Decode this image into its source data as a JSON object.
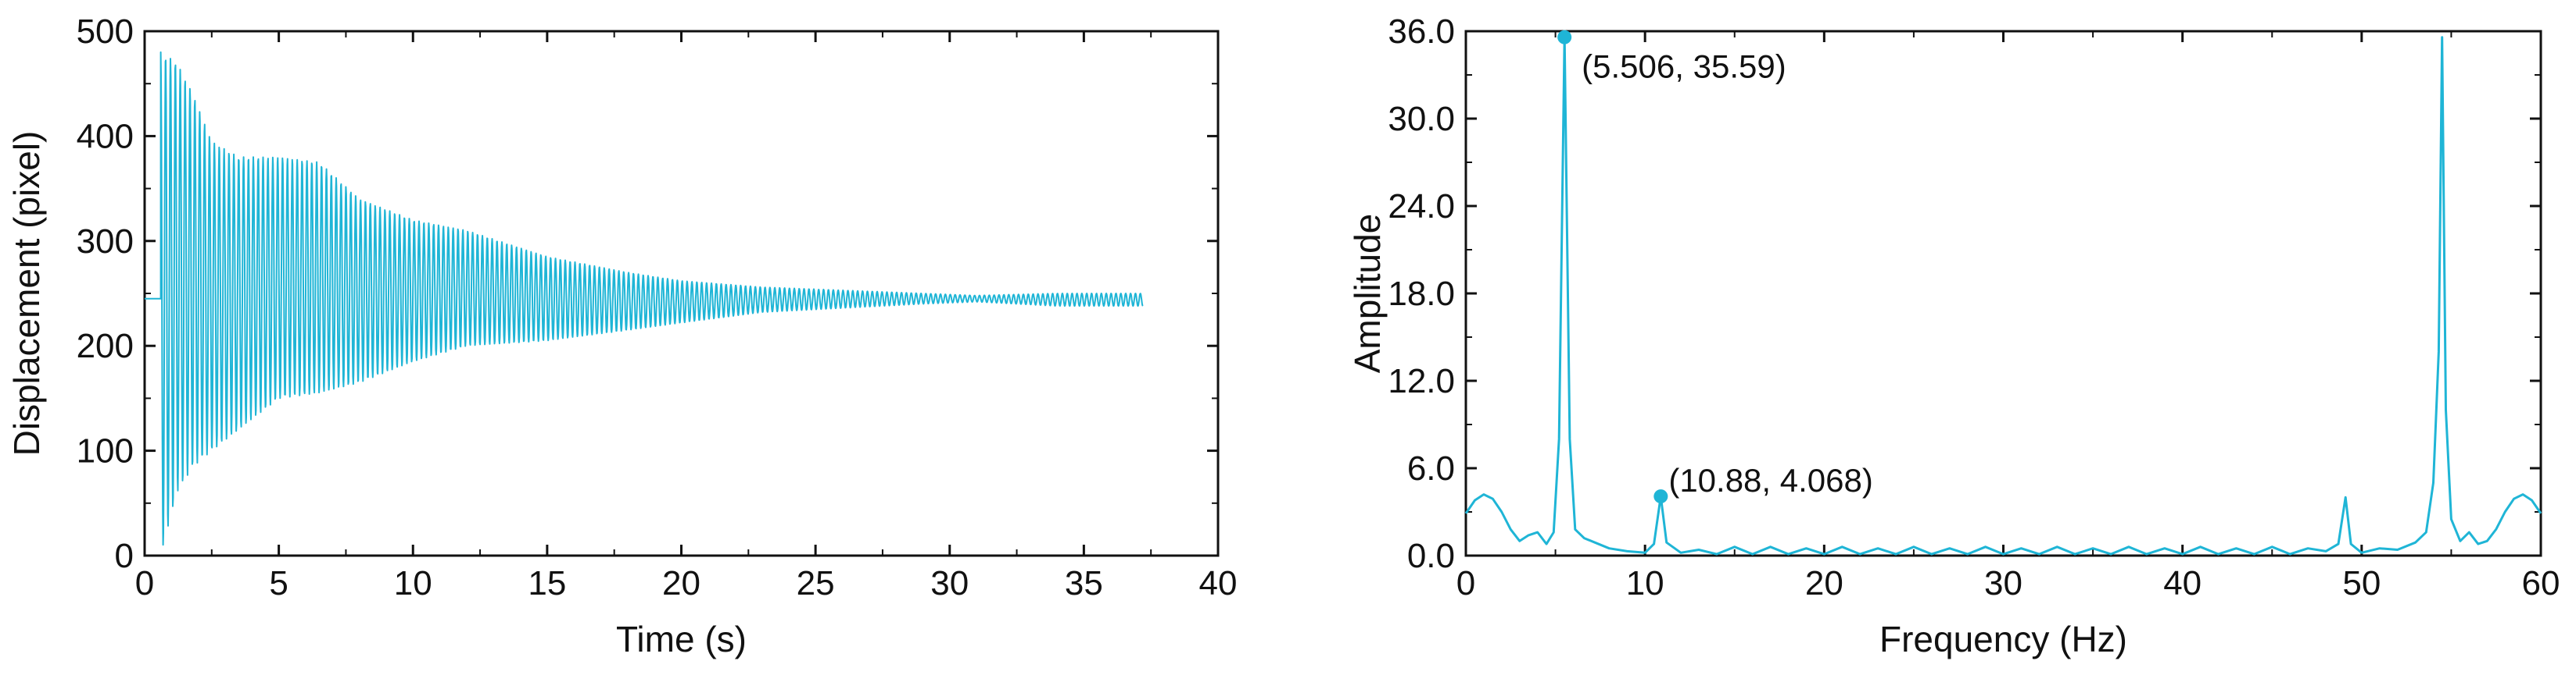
{
  "chart_data": [
    {
      "type": "line",
      "xlabel": "Time (s)",
      "ylabel": "Displacement (pixel)",
      "xlim": [
        0,
        40
      ],
      "ylim": [
        0,
        500
      ],
      "xticks": [
        0,
        5,
        10,
        15,
        20,
        25,
        30,
        35,
        40
      ],
      "xtick_labels": [
        "0",
        "5",
        "10",
        "15",
        "20",
        "25",
        "30",
        "35",
        "40"
      ],
      "yticks": [
        0,
        100,
        200,
        300,
        400,
        500
      ],
      "ytick_labels": [
        "0",
        "100",
        "200",
        "300",
        "400",
        "500"
      ],
      "grid": false,
      "color": "#1fb5d6",
      "signal": {
        "baseline": 245,
        "flat_before_release": [
          0,
          0.6
        ],
        "release_time": 0.6,
        "end_time": 37.2,
        "oscillation_frequency_hz": 5.506,
        "envelope": [
          {
            "t": 0.6,
            "high": 480,
            "low": 0
          },
          {
            "t": 1.2,
            "high": 470,
            "low": 60
          },
          {
            "t": 1.8,
            "high": 440,
            "low": 85
          },
          {
            "t": 2.5,
            "high": 395,
            "low": 100
          },
          {
            "t": 3.5,
            "high": 380,
            "low": 120
          },
          {
            "t": 5.0,
            "high": 380,
            "low": 150
          },
          {
            "t": 6.5,
            "high": 375,
            "low": 155
          },
          {
            "t": 8.0,
            "high": 340,
            "low": 165
          },
          {
            "t": 10.0,
            "high": 320,
            "low": 185
          },
          {
            "t": 12.0,
            "high": 310,
            "low": 200
          },
          {
            "t": 15.0,
            "high": 285,
            "low": 205
          },
          {
            "t": 18.0,
            "high": 270,
            "low": 215
          },
          {
            "t": 20.0,
            "high": 262,
            "low": 222
          },
          {
            "t": 23.0,
            "high": 256,
            "low": 232
          },
          {
            "t": 26.0,
            "high": 253,
            "low": 236
          },
          {
            "t": 29.0,
            "high": 250,
            "low": 240
          },
          {
            "t": 31.0,
            "high": 248,
            "low": 242
          },
          {
            "t": 34.0,
            "high": 250,
            "low": 238
          },
          {
            "t": 37.2,
            "high": 250,
            "low": 238
          }
        ]
      }
    },
    {
      "type": "line",
      "xlabel": "Frequency (Hz)",
      "ylabel": "Amplitude",
      "xlim": [
        0,
        60
      ],
      "ylim": [
        0,
        36
      ],
      "xticks": [
        0,
        10,
        20,
        30,
        40,
        50,
        60
      ],
      "xtick_labels": [
        "0",
        "10",
        "20",
        "30",
        "40",
        "50",
        "60"
      ],
      "yticks": [
        0,
        6,
        12,
        18,
        24,
        30,
        36
      ],
      "ytick_labels": [
        "0.0",
        "6.0",
        "12.0",
        "18.0",
        "24.0",
        "30.0",
        "36.0"
      ],
      "grid": false,
      "color": "#1fb5d6",
      "series": [
        {
          "points": [
            [
              0,
              2.9
            ],
            [
              0.5,
              3.8
            ],
            [
              1.0,
              4.2
            ],
            [
              1.5,
              3.9
            ],
            [
              2.0,
              3.0
            ],
            [
              2.5,
              1.8
            ],
            [
              3.0,
              1.0
            ],
            [
              3.5,
              1.4
            ],
            [
              4.0,
              1.6
            ],
            [
              4.5,
              0.8
            ],
            [
              4.9,
              1.6
            ],
            [
              5.2,
              8.0
            ],
            [
              5.506,
              35.59
            ],
            [
              5.8,
              8.0
            ],
            [
              6.1,
              1.8
            ],
            [
              6.6,
              1.2
            ],
            [
              7.2,
              0.9
            ],
            [
              8.0,
              0.5
            ],
            [
              9.0,
              0.3
            ],
            [
              10.0,
              0.2
            ],
            [
              10.5,
              0.8
            ],
            [
              10.88,
              4.068
            ],
            [
              11.2,
              0.9
            ],
            [
              12.0,
              0.2
            ],
            [
              13.0,
              0.4
            ],
            [
              14.0,
              0.1
            ],
            [
              15.0,
              0.6
            ],
            [
              16.0,
              0.1
            ],
            [
              17.0,
              0.6
            ],
            [
              18.0,
              0.1
            ],
            [
              19.0,
              0.5
            ],
            [
              20.0,
              0.1
            ],
            [
              21.0,
              0.6
            ],
            [
              22.0,
              0.1
            ],
            [
              23.0,
              0.5
            ],
            [
              24.0,
              0.1
            ],
            [
              25.0,
              0.6
            ],
            [
              26.0,
              0.1
            ],
            [
              27.0,
              0.5
            ],
            [
              28.0,
              0.1
            ],
            [
              29.0,
              0.6
            ],
            [
              30.0,
              0.1
            ],
            [
              31.0,
              0.5
            ],
            [
              32.0,
              0.1
            ],
            [
              33.0,
              0.6
            ],
            [
              34.0,
              0.1
            ],
            [
              35.0,
              0.5
            ],
            [
              36.0,
              0.1
            ],
            [
              37.0,
              0.6
            ],
            [
              38.0,
              0.1
            ],
            [
              39.0,
              0.5
            ],
            [
              40.0,
              0.1
            ],
            [
              41.0,
              0.6
            ],
            [
              42.0,
              0.1
            ],
            [
              43.0,
              0.5
            ],
            [
              44.0,
              0.1
            ],
            [
              45.0,
              0.6
            ],
            [
              46.0,
              0.1
            ],
            [
              47.0,
              0.5
            ],
            [
              48.0,
              0.3
            ],
            [
              48.7,
              0.8
            ],
            [
              49.1,
              4.0
            ],
            [
              49.4,
              0.8
            ],
            [
              50.0,
              0.2
            ],
            [
              51.0,
              0.5
            ],
            [
              52.0,
              0.4
            ],
            [
              53.0,
              0.9
            ],
            [
              53.6,
              1.6
            ],
            [
              54.0,
              5.0
            ],
            [
              54.3,
              14.0
            ],
            [
              54.49,
              35.59
            ],
            [
              54.7,
              10.0
            ],
            [
              55.0,
              2.5
            ],
            [
              55.5,
              1.0
            ],
            [
              56.0,
              1.6
            ],
            [
              56.5,
              0.8
            ],
            [
              57.0,
              1.0
            ],
            [
              57.5,
              1.8
            ],
            [
              58.0,
              3.0
            ],
            [
              58.5,
              3.9
            ],
            [
              59.0,
              4.2
            ],
            [
              59.5,
              3.8
            ],
            [
              60.0,
              2.9
            ]
          ]
        }
      ],
      "annotations": [
        {
          "x": 5.506,
          "y": 35.59,
          "label": "(5.506, 35.59)"
        },
        {
          "x": 10.88,
          "y": 4.068,
          "label": "(10.88, 4.068)"
        }
      ]
    }
  ]
}
